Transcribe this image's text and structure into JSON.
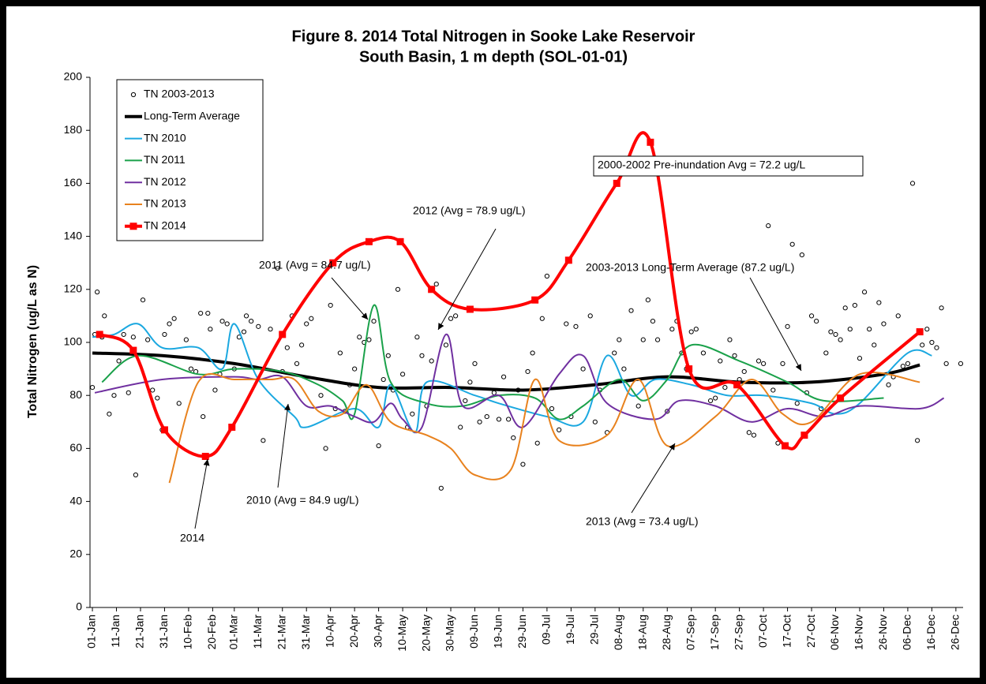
{
  "chart_data": {
    "type": "line",
    "title": "Figure 8. 2014 Total Nitrogen in Sooke Lake Reservoir",
    "subtitle": "South Basin, 1 m depth (SOL-01-01)",
    "y_label": "Total Nitrogen (ug/L as N)",
    "xlim": [
      0,
      363
    ],
    "ylim": [
      0,
      200
    ],
    "yticks": [
      0,
      20,
      40,
      60,
      80,
      100,
      120,
      140,
      160,
      180,
      200
    ],
    "xticks": [
      {
        "value": 1,
        "label": "01-Jan"
      },
      {
        "value": 11,
        "label": "11-Jan"
      },
      {
        "value": 21,
        "label": "21-Jan"
      },
      {
        "value": 31,
        "label": "31-Jan"
      },
      {
        "value": 41,
        "label": "10-Feb"
      },
      {
        "value": 51,
        "label": "20-Feb"
      },
      {
        "value": 60,
        "label": "01-Mar"
      },
      {
        "value": 70,
        "label": "11-Mar"
      },
      {
        "value": 80,
        "label": "21-Mar"
      },
      {
        "value": 90,
        "label": "31-Mar"
      },
      {
        "value": 100,
        "label": "10-Apr"
      },
      {
        "value": 110,
        "label": "20-Apr"
      },
      {
        "value": 120,
        "label": "30-Apr"
      },
      {
        "value": 130,
        "label": "10-May"
      },
      {
        "value": 140,
        "label": "20-May"
      },
      {
        "value": 150,
        "label": "30-May"
      },
      {
        "value": 160,
        "label": "09-Jun"
      },
      {
        "value": 170,
        "label": "19-Jun"
      },
      {
        "value": 180,
        "label": "29-Jun"
      },
      {
        "value": 190,
        "label": "09-Jul"
      },
      {
        "value": 200,
        "label": "19-Jul"
      },
      {
        "value": 210,
        "label": "29-Jul"
      },
      {
        "value": 220,
        "label": "08-Aug"
      },
      {
        "value": 230,
        "label": "18-Aug"
      },
      {
        "value": 240,
        "label": "28-Aug"
      },
      {
        "value": 250,
        "label": "07-Sep"
      },
      {
        "value": 260,
        "label": "17-Sep"
      },
      {
        "value": 270,
        "label": "27-Sep"
      },
      {
        "value": 280,
        "label": "07-Oct"
      },
      {
        "value": 290,
        "label": "17-Oct"
      },
      {
        "value": 300,
        "label": "27-Oct"
      },
      {
        "value": 310,
        "label": "06-Nov"
      },
      {
        "value": 320,
        "label": "16-Nov"
      },
      {
        "value": 330,
        "label": "26-Nov"
      },
      {
        "value": 340,
        "label": "06-Dec"
      },
      {
        "value": 350,
        "label": "16-Dec"
      },
      {
        "value": 360,
        "label": "26-Dec"
      }
    ],
    "grid": false,
    "legend": "upper left",
    "series": [
      {
        "name": "TN 2003-2013",
        "style": "points",
        "color": "#000000",
        "line_width": 1,
        "x": [
          1,
          2,
          3,
          5,
          6,
          8,
          10,
          12,
          14,
          16,
          18,
          19,
          22,
          24,
          26,
          28,
          30,
          31,
          33,
          35,
          37,
          40,
          42,
          44,
          46,
          47,
          49,
          50,
          52,
          54,
          55,
          57,
          59,
          60,
          62,
          64,
          65,
          67,
          70,
          72,
          75,
          78,
          80,
          82,
          84,
          86,
          88,
          90,
          92,
          96,
          98,
          100,
          102,
          104,
          106,
          108,
          110,
          112,
          114,
          116,
          118,
          120,
          122,
          124,
          126,
          128,
          130,
          132,
          134,
          136,
          138,
          140,
          142,
          144,
          146,
          148,
          150,
          152,
          154,
          156,
          158,
          160,
          162,
          165,
          168,
          170,
          172,
          174,
          176,
          178,
          180,
          182,
          184,
          186,
          188,
          190,
          192,
          195,
          198,
          200,
          202,
          205,
          208,
          210,
          212,
          215,
          218,
          220,
          222,
          225,
          228,
          230,
          232,
          234,
          236,
          240,
          242,
          244,
          246,
          248,
          250,
          252,
          255,
          258,
          260,
          262,
          264,
          266,
          268,
          270,
          272,
          274,
          276,
          278,
          280,
          282,
          284,
          286,
          288,
          290,
          292,
          294,
          296,
          298,
          300,
          302,
          304,
          306,
          308,
          310,
          312,
          314,
          316,
          318,
          320,
          322,
          324,
          326,
          328,
          330,
          332,
          334,
          336,
          338,
          340,
          342,
          344,
          346,
          348,
          350,
          352,
          354,
          356,
          362
        ],
        "values": [
          83,
          103,
          119,
          102,
          110,
          73,
          80,
          93,
          103,
          81,
          102,
          50,
          116,
          101,
          82,
          79,
          67,
          103,
          107,
          109,
          77,
          101,
          90,
          89,
          111,
          72,
          111,
          105,
          82,
          88,
          108,
          107,
          68,
          90,
          102,
          104,
          110,
          108,
          106,
          63,
          105,
          128,
          89,
          98,
          110,
          92,
          99,
          107,
          109,
          80,
          60,
          114,
          75,
          96,
          74,
          84,
          90,
          102,
          100,
          101,
          108,
          61,
          86,
          95,
          82,
          120,
          88,
          68,
          73,
          102,
          95,
          76,
          93,
          122,
          45,
          99,
          109,
          110,
          68,
          78,
          85,
          92,
          70,
          72,
          81,
          71,
          87,
          71,
          64,
          82,
          54,
          89,
          96,
          62,
          109,
          125,
          75,
          67,
          107,
          72,
          106,
          90,
          110,
          70,
          82,
          66,
          96,
          101,
          90,
          112,
          76,
          101,
          116,
          108,
          101,
          74,
          105,
          108,
          96,
          90,
          104,
          105,
          96,
          78,
          79,
          93,
          83,
          101,
          95,
          86,
          89,
          66,
          65,
          93,
          92,
          144,
          82,
          62,
          92,
          106,
          137,
          77,
          133,
          81,
          110,
          108,
          75,
          96,
          104,
          103,
          101,
          113,
          105,
          114,
          94,
          119,
          105,
          99,
          115,
          107,
          84,
          87,
          110,
          91,
          92,
          160,
          63,
          99,
          105,
          100,
          98,
          113,
          92,
          92
        ]
      },
      {
        "name": "Long-Term Average",
        "style": "line",
        "color": "#000000",
        "line_width": 4,
        "x": [
          1,
          30,
          60,
          90,
          120,
          150,
          180,
          210,
          240,
          270,
          300,
          330,
          345
        ],
        "values": [
          96,
          95,
          92,
          87,
          83,
          83,
          82,
          84,
          87,
          85,
          85,
          88,
          91.5
        ]
      },
      {
        "name": "TN 2010",
        "style": "line",
        "color": "#1ba8e0",
        "line_width": 2,
        "x": [
          1,
          10,
          20,
          30,
          45,
          55,
          60,
          70,
          85,
          90,
          110,
          120,
          125,
          135,
          140,
          160,
          170,
          190,
          205,
          215,
          225,
          235,
          250,
          265,
          280,
          300,
          310,
          320,
          340,
          350
        ],
        "values": [
          102,
          103,
          107,
          98,
          98,
          90,
          107,
          86,
          72,
          68,
          75,
          68,
          84,
          66,
          85,
          80,
          77,
          72,
          70,
          95,
          80,
          86,
          84,
          80,
          80,
          77,
          73,
          77,
          96,
          95
        ]
      },
      {
        "name": "TN 2011",
        "style": "line",
        "color": "#1aa14a",
        "line_width": 2,
        "x": [
          5,
          20,
          45,
          60,
          80,
          95,
          105,
          110,
          118,
          125,
          140,
          155,
          170,
          185,
          195,
          205,
          220,
          230,
          240,
          250,
          270,
          290,
          305,
          330
        ],
        "values": [
          85,
          95,
          88,
          90,
          89,
          84,
          78,
          73,
          114,
          85,
          77,
          76,
          80,
          79,
          71,
          76,
          86,
          78,
          86,
          99,
          93,
          85,
          78,
          79
        ]
      },
      {
        "name": "TN 2012",
        "style": "line",
        "color": "#7030a0",
        "line_width": 2,
        "x": [
          2,
          30,
          60,
          70,
          80,
          90,
          100,
          110,
          118,
          125,
          130,
          138,
          148,
          155,
          170,
          180,
          195,
          205,
          215,
          235,
          245,
          260,
          275,
          290,
          305,
          320,
          345,
          355
        ],
        "values": [
          81,
          86,
          87,
          86,
          87,
          76,
          76,
          72,
          70,
          77,
          71,
          68,
          103,
          76,
          80,
          68,
          88,
          95,
          77,
          71,
          78,
          76,
          70,
          75,
          72,
          76,
          75,
          79
        ]
      },
      {
        "name": "TN 2013",
        "style": "line",
        "color": "#e8821e",
        "line_width": 2,
        "x": [
          33,
          45,
          60,
          75,
          85,
          95,
          105,
          115,
          125,
          140,
          150,
          160,
          175,
          185,
          195,
          215,
          228,
          240,
          260,
          275,
          288,
          300,
          320,
          345
        ],
        "values": [
          47,
          85,
          86,
          86,
          86,
          74,
          73,
          84,
          70,
          65,
          60,
          50,
          52,
          86,
          63,
          65,
          86,
          61,
          72,
          86,
          73,
          70,
          88,
          85
        ]
      },
      {
        "name": "TN 2014",
        "style": "line-square",
        "color": "#ff0000",
        "line_width": 4,
        "x": [
          4,
          18,
          31,
          48,
          59,
          80,
          101,
          116,
          129,
          142,
          158,
          185,
          199,
          219,
          233,
          249,
          269,
          289,
          297,
          312,
          345
        ],
        "values": [
          103,
          97,
          67,
          57,
          68,
          103,
          130,
          138,
          138,
          120,
          112.5,
          116,
          131,
          160,
          175.5,
          90,
          84,
          61,
          65,
          79,
          104
        ]
      }
    ],
    "annotations": [
      "2011 (Avg = 84.7 ug/L)",
      "2012 (Avg = 78.9 ug/L)",
      "2003-2013 Long-Term Average (87.2 ug/L)",
      "2010 (Avg = 84.9 ug/L)",
      "2013 (Avg = 73.4 ug/L)",
      "2014",
      "2000-2002 Pre-inundation Avg = 72.2 ug/L"
    ]
  }
}
